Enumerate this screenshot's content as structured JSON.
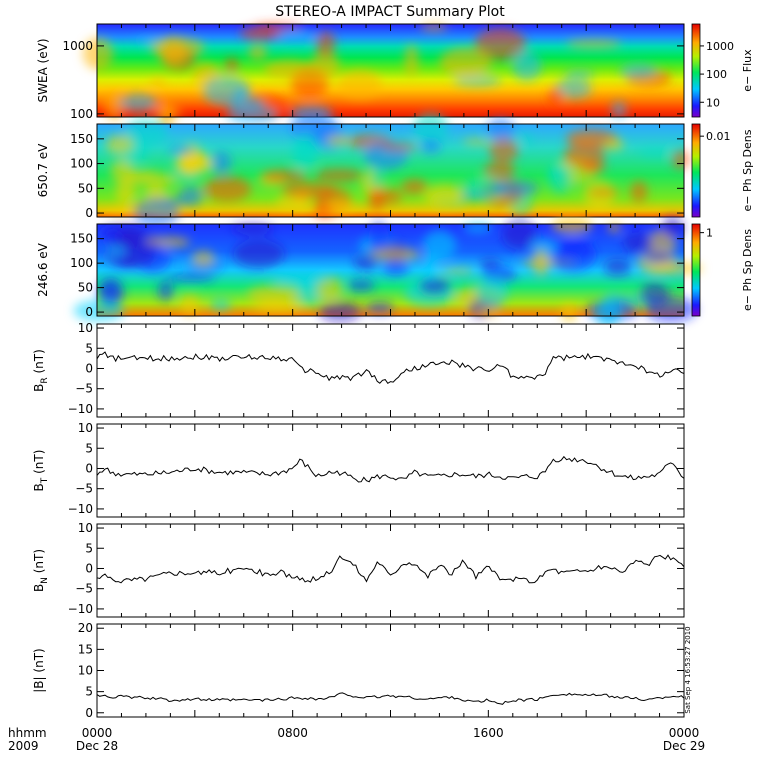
{
  "chart_data": {
    "title": "STEREO-A IMPACT Summary Plot",
    "timestamp_label": "Sat Sep  4 16:53:27 2010",
    "x_axis": {
      "unit_label": "hhmm",
      "year_label": "2009",
      "range_hours": [
        0,
        24
      ],
      "ticks": [
        {
          "hour": 0,
          "time": "0000",
          "date": "Dec 28"
        },
        {
          "hour": 8,
          "time": "0800",
          "date": ""
        },
        {
          "hour": 16,
          "time": "1600",
          "date": ""
        },
        {
          "hour": 24,
          "time": "0000",
          "date": "Dec 29"
        }
      ]
    },
    "panels": [
      {
        "type": "heatmap",
        "ylabel": "SWEA (eV)",
        "ylog": true,
        "ylim": [
          90,
          2100
        ],
        "yticks": [
          {
            "v": 100,
            "t": "100"
          },
          {
            "v": 1000,
            "t": "1000"
          }
        ],
        "colorbar": {
          "label": "e− Flux",
          "log": true,
          "range": [
            3,
            6000
          ],
          "ticks": [
            {
              "v": 10,
              "t": "10"
            },
            {
              "v": 100,
              "t": "100"
            },
            {
              "v": 1000,
              "t": "1000"
            }
          ]
        }
      },
      {
        "type": "heatmap",
        "ylabel": "650.7 eV",
        "ylim": [
          -8,
          180
        ],
        "yticks": [
          {
            "v": 0,
            "t": "0"
          },
          {
            "v": 50,
            "t": "50"
          },
          {
            "v": 100,
            "t": "100"
          },
          {
            "v": 150,
            "t": "150"
          }
        ],
        "colorbar": {
          "label": "e− Ph Sp Dens",
          "log": true,
          "range": [
            0.0001,
            0.02
          ],
          "ticks": [
            {
              "v": 0.01,
              "t": "0.01"
            }
          ]
        }
      },
      {
        "type": "heatmap",
        "ylabel": "246.6 eV",
        "ylim": [
          -8,
          180
        ],
        "yticks": [
          {
            "v": 0,
            "t": "0"
          },
          {
            "v": 50,
            "t": "50"
          },
          {
            "v": 100,
            "t": "100"
          },
          {
            "v": 150,
            "t": "150"
          }
        ],
        "colorbar": {
          "label": "e− Ph Sp Dens",
          "log": true,
          "range": [
            0.02,
            1.5
          ],
          "ticks": [
            {
              "v": 1,
              "t": "1"
            }
          ]
        }
      },
      {
        "type": "line",
        "ylabel": "B",
        "ylabel_sub": "R",
        "ylabel_unit": "(nT)",
        "ylim": [
          -12,
          11
        ],
        "yticks": [
          {
            "v": -10,
            "t": "−10"
          },
          {
            "v": -5,
            "t": "−5"
          },
          {
            "v": 0,
            "t": "0"
          },
          {
            "v": 5,
            "t": "5"
          },
          {
            "v": 10,
            "t": "10"
          }
        ],
        "series": [
          {
            "x": [
              0,
              0.3,
              0.6,
              1,
              2,
              3,
              4,
              5,
              6,
              7,
              7.5,
              8,
              8.3,
              8.6,
              9,
              9.5,
              10,
              10.5,
              11,
              11.5,
              12,
              12.5,
              13,
              13.5,
              14,
              14.5,
              15,
              15.5,
              16,
              16.5,
              17,
              17.5,
              18,
              18.3,
              18.6,
              19,
              20,
              21,
              21.5,
              22,
              22.5,
              23,
              23.5,
              24
            ],
            "y": [
              3,
              3.5,
              2.5,
              2.5,
              2.5,
              2.5,
              3,
              2.5,
              2.8,
              2.8,
              2.5,
              2.3,
              0,
              -0.5,
              -1,
              -2.5,
              -2,
              -2.5,
              -0.5,
              -3,
              -3.5,
              -1,
              0,
              1,
              1,
              1.5,
              0.5,
              0,
              -0.5,
              1,
              -2,
              -2.5,
              -2,
              -1.5,
              2.5,
              2.5,
              3,
              2,
              1.5,
              1,
              -1,
              -1.5,
              -0.5,
              -1
            ]
          }
        ]
      },
      {
        "type": "line",
        "ylabel": "B",
        "ylabel_sub": "T",
        "ylabel_unit": "(nT)",
        "ylim": [
          -12,
          11
        ],
        "yticks": [
          {
            "v": -10,
            "t": "−10"
          },
          {
            "v": -5,
            "t": "−5"
          },
          {
            "v": 0,
            "t": "0"
          },
          {
            "v": 5,
            "t": "5"
          },
          {
            "v": 10,
            "t": "10"
          }
        ],
        "series": [
          {
            "x": [
              0,
              0.3,
              0.6,
              1,
              2,
              3,
              4,
              5,
              6,
              7,
              7.5,
              8,
              8.3,
              8.6,
              9,
              9.5,
              10,
              10.5,
              11,
              11.5,
              12,
              12.5,
              13,
              13.5,
              14,
              14.5,
              15,
              15.5,
              16,
              16.5,
              17,
              17.5,
              18,
              18.3,
              18.6,
              19,
              20,
              21,
              21.5,
              22,
              22.5,
              23,
              23.5,
              24
            ],
            "y": [
              -1.5,
              0,
              -1,
              -1.5,
              -1.5,
              -1,
              0,
              -1,
              -1,
              -1.5,
              -1,
              0,
              2,
              0.5,
              -2,
              -1,
              -1,
              -2.5,
              -3,
              -2,
              -2,
              -3,
              -1,
              -2,
              -2,
              -1.5,
              -1.5,
              -2,
              -1.5,
              -2,
              -2.5,
              -2,
              -2,
              -1,
              2,
              2.5,
              2,
              -1,
              -2,
              -2.5,
              -2,
              -1.5,
              2,
              -2.5
            ]
          }
        ]
      },
      {
        "type": "line",
        "ylabel": "B",
        "ylabel_sub": "N",
        "ylabel_unit": "(nT)",
        "ylim": [
          -12,
          11
        ],
        "yticks": [
          {
            "v": -10,
            "t": "−10"
          },
          {
            "v": -5,
            "t": "−5"
          },
          {
            "v": 0,
            "t": "0"
          },
          {
            "v": 5,
            "t": "5"
          },
          {
            "v": 10,
            "t": "10"
          }
        ],
        "series": [
          {
            "x": [
              0,
              0.3,
              0.6,
              1,
              2,
              3,
              4,
              5,
              6,
              7,
              7.5,
              8,
              8.3,
              8.6,
              9,
              9.5,
              10,
              10.5,
              11,
              11.5,
              12,
              12.5,
              13,
              13.5,
              14,
              14.5,
              15,
              15.5,
              16,
              16.5,
              17,
              17.5,
              18,
              18.3,
              18.6,
              19,
              20,
              21,
              21.5,
              22,
              22.5,
              23,
              23.5,
              24
            ],
            "y": [
              -2.5,
              -2,
              -2.5,
              -3,
              -2.5,
              -1,
              -1,
              -1,
              0,
              -1.5,
              -1,
              -2,
              -3,
              -3,
              -2.5,
              -1,
              3,
              1,
              -3,
              2,
              -2,
              1.5,
              1.5,
              -2,
              1,
              -1.5,
              2,
              -2,
              0.5,
              -3,
              -2.5,
              -3,
              -3,
              -1,
              0,
              -1,
              -0.5,
              0.5,
              -1,
              2,
              1,
              3,
              2.5,
              0
            ]
          }
        ]
      },
      {
        "type": "line",
        "ylabel": "|B|",
        "ylabel_sub": "",
        "ylabel_unit": "(nT)",
        "ylim": [
          -1,
          21
        ],
        "yticks": [
          {
            "v": 0,
            "t": "0"
          },
          {
            "v": 5,
            "t": "5"
          },
          {
            "v": 10,
            "t": "10"
          },
          {
            "v": 15,
            "t": "15"
          },
          {
            "v": 20,
            "t": "20"
          }
        ],
        "series": [
          {
            "x": [
              0,
              0.3,
              0.6,
              1,
              2,
              3,
              4,
              5,
              6,
              7,
              7.5,
              8,
              8.3,
              8.6,
              9,
              9.5,
              10,
              10.5,
              11,
              11.5,
              12,
              12.5,
              13,
              13.5,
              14,
              14.5,
              15,
              15.5,
              16,
              16.5,
              17,
              17.5,
              18,
              18.3,
              18.6,
              19,
              20,
              21,
              21.5,
              22,
              22.5,
              23,
              23.5,
              24
            ],
            "y": [
              4,
              4.2,
              3.8,
              3.8,
              3.5,
              3,
              3.2,
              3,
              3,
              3,
              3.2,
              3.5,
              3.5,
              3.5,
              3.2,
              3.5,
              4.5,
              4,
              3.5,
              3.8,
              4,
              3.8,
              3.5,
              3.2,
              3.5,
              3.8,
              3,
              2.5,
              3,
              2,
              3,
              3,
              3.2,
              3.5,
              4.2,
              4.5,
              4.2,
              4,
              3.5,
              3.5,
              3,
              3.5,
              4,
              3.8
            ]
          }
        ]
      }
    ]
  }
}
